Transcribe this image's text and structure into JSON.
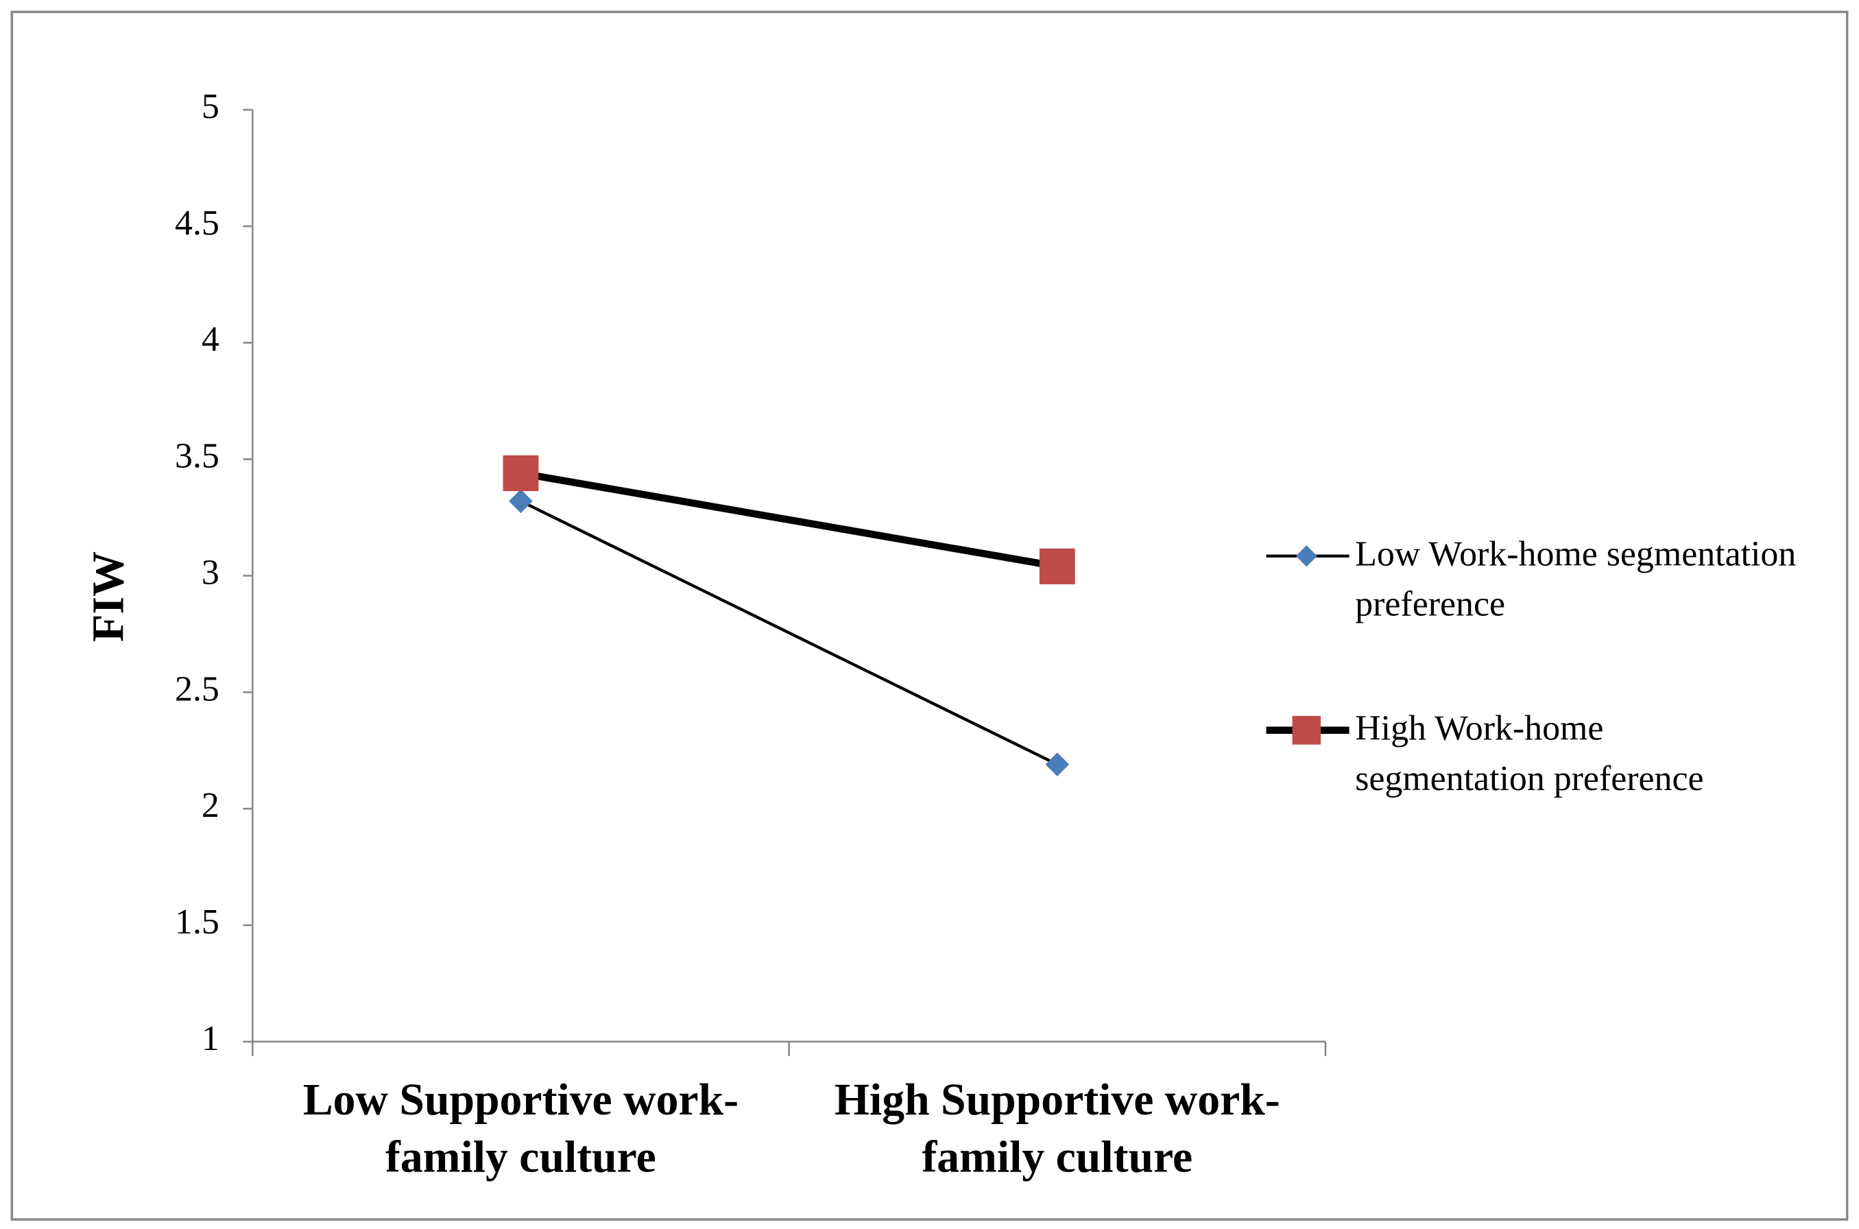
{
  "chart_data": {
    "type": "line",
    "y_label": "FIW",
    "categories": [
      "Low Supportive work-family culture",
      "High Supportive work-family culture"
    ],
    "series": [
      {
        "name": "Low Work-home segmentation preference",
        "color": "#4a7ebb",
        "marker": "diamond",
        "values": [
          3.32,
          2.19
        ]
      },
      {
        "name": "High Work-home segmentation preference",
        "color": "#be4b48",
        "marker": "square",
        "values": [
          3.44,
          3.04
        ]
      }
    ],
    "ylim": [
      1,
      5
    ],
    "yticks": [
      1,
      1.5,
      2,
      2.5,
      3,
      3.5,
      4,
      4.5,
      5
    ],
    "grid": false,
    "legend": "right"
  }
}
